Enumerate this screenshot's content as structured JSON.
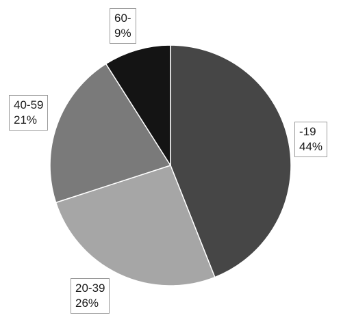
{
  "chart_data": {
    "type": "pie",
    "title": "",
    "slices": [
      {
        "category": "-19",
        "percent_label": "44%",
        "value": 44,
        "color": "#464646"
      },
      {
        "category": "20-39",
        "percent_label": "26%",
        "value": 26,
        "color": "#a6a6a6"
      },
      {
        "category": "40-59",
        "percent_label": "21%",
        "value": 21,
        "color": "#7a7a7a"
      },
      {
        "category": "60-",
        "percent_label": "9%",
        "value": 9,
        "color": "#141414"
      }
    ],
    "start": "12 o'clock",
    "direction": "clockwise",
    "legend": "none",
    "slice_border_color": "#ffffff"
  }
}
